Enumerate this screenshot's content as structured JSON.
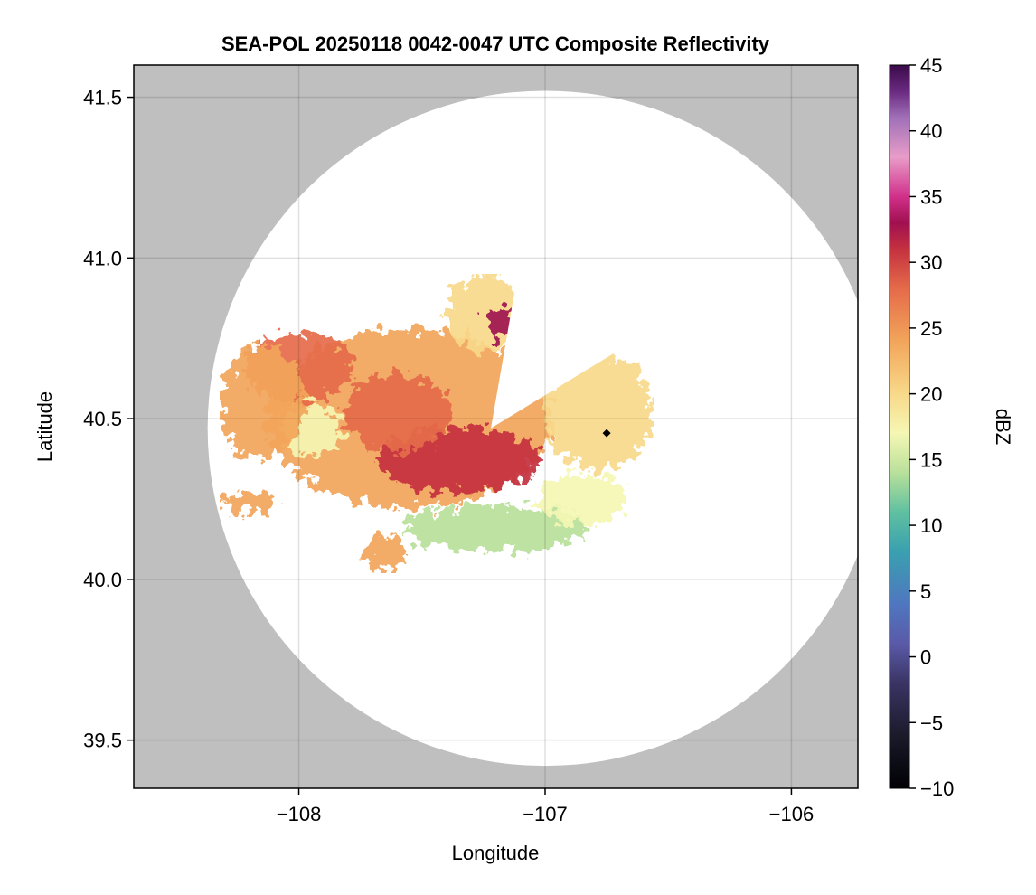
{
  "chart_data": {
    "type": "heatmap",
    "title": "SEA-POL 20250118 0042-0047 UTC Composite Reflectivity",
    "xlabel": "Longitude",
    "ylabel": "Latitude",
    "xlim": [
      -108.67,
      -105.73
    ],
    "ylim": [
      39.35,
      41.6
    ],
    "xticks": [
      -108,
      -107,
      -106
    ],
    "xtick_labels": [
      "−108",
      "−107",
      "−106"
    ],
    "yticks": [
      39.5,
      40.0,
      40.5,
      41.0,
      41.5
    ],
    "ytick_labels": [
      "39.5",
      "40.0",
      "40.5",
      "41.0",
      "41.5"
    ],
    "grid": true,
    "colorbar": {
      "label": "dBZ",
      "range": [
        -10,
        45
      ],
      "ticks": [
        -10,
        -5,
        0,
        5,
        10,
        15,
        20,
        25,
        30,
        35,
        40,
        45
      ],
      "tick_labels": [
        "−10",
        "−5",
        "0",
        "5",
        "10",
        "15",
        "20",
        "25",
        "30",
        "35",
        "40",
        "45"
      ],
      "stops": [
        {
          "value": -10,
          "color": "#000004"
        },
        {
          "value": -6,
          "color": "#1a1a2a"
        },
        {
          "value": -2,
          "color": "#3a3464"
        },
        {
          "value": 1,
          "color": "#5a5aa8"
        },
        {
          "value": 4,
          "color": "#4f76bf"
        },
        {
          "value": 8,
          "color": "#3aa0b0"
        },
        {
          "value": 11,
          "color": "#5fc0a0"
        },
        {
          "value": 14,
          "color": "#b8e09a"
        },
        {
          "value": 17,
          "color": "#f5f7b4"
        },
        {
          "value": 20,
          "color": "#f8d98a"
        },
        {
          "value": 24,
          "color": "#f2a55a"
        },
        {
          "value": 28,
          "color": "#e56b4a"
        },
        {
          "value": 31,
          "color": "#c4313f"
        },
        {
          "value": 33,
          "color": "#a01050"
        },
        {
          "value": 35,
          "color": "#d0308a"
        },
        {
          "value": 38,
          "color": "#e89cc8"
        },
        {
          "value": 41,
          "color": "#a070b8"
        },
        {
          "value": 43,
          "color": "#6a2a80"
        },
        {
          "value": 45,
          "color": "#3a0a4a"
        }
      ]
    },
    "coverage_center": {
      "lon": -107.0,
      "lat": 40.47
    },
    "coverage_radius_deg_lat": 1.05,
    "no_coverage_color": "#bfbfbf",
    "radar_site": {
      "lon": -106.75,
      "lat": 40.455
    },
    "echo_regions": [
      {
        "name": "main-echo",
        "lon": -107.55,
        "lat": 40.5,
        "rx": 0.58,
        "ry": 0.28,
        "dbz": 21
      },
      {
        "name": "west-core",
        "lon": -108.0,
        "lat": 40.66,
        "rx": 0.22,
        "ry": 0.11,
        "dbz": 25
      },
      {
        "name": "south-core",
        "lon": -107.35,
        "lat": 40.37,
        "rx": 0.33,
        "ry": 0.1,
        "dbz": 30
      },
      {
        "name": "central-core",
        "lon": -107.6,
        "lat": 40.52,
        "rx": 0.22,
        "ry": 0.12,
        "dbz": 28
      },
      {
        "name": "east-lobe",
        "lon": -106.78,
        "lat": 40.52,
        "rx": 0.22,
        "ry": 0.18,
        "dbz": 18
      },
      {
        "name": "north-band",
        "lon": -107.25,
        "lat": 40.83,
        "rx": 0.15,
        "ry": 0.12,
        "dbz": 20
      },
      {
        "name": "north-core",
        "lon": -107.18,
        "lat": 40.8,
        "rx": 0.06,
        "ry": 0.05,
        "dbz": 33
      },
      {
        "name": "light-west",
        "lon": -107.95,
        "lat": 40.47,
        "rx": 0.12,
        "ry": 0.08,
        "dbz": 16
      },
      {
        "name": "south-fringe",
        "lon": -107.2,
        "lat": 40.16,
        "rx": 0.38,
        "ry": 0.07,
        "dbz": 14
      },
      {
        "name": "southwest-blob",
        "lon": -107.65,
        "lat": 40.08,
        "rx": 0.08,
        "ry": 0.06,
        "dbz": 22
      },
      {
        "name": "southeast-fringe",
        "lon": -106.85,
        "lat": 40.25,
        "rx": 0.18,
        "ry": 0.08,
        "dbz": 15
      },
      {
        "name": "far-west-streak",
        "lon": -108.2,
        "lat": 40.24,
        "rx": 0.12,
        "ry": 0.03,
        "dbz": 24
      },
      {
        "name": "west-arm",
        "lon": -108.15,
        "lat": 40.55,
        "rx": 0.17,
        "ry": 0.18,
        "dbz": 22
      }
    ]
  }
}
